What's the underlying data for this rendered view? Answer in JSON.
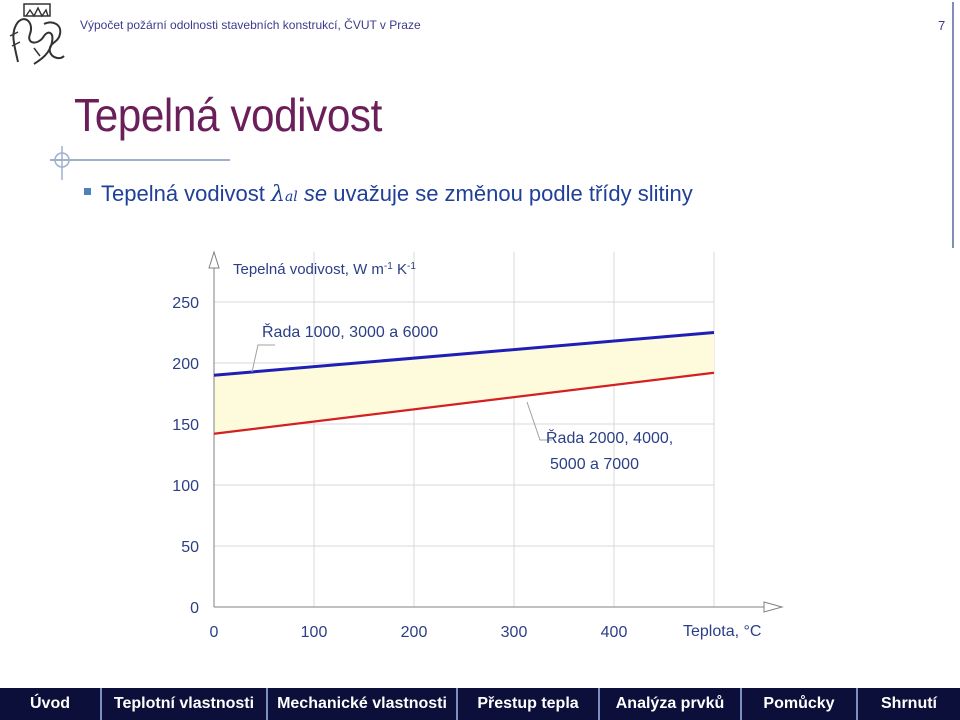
{
  "header": {
    "text": "Výpočet požární odolnosti stavebních konstrukcí, ČVUT v Praze",
    "page_number": "7"
  },
  "slide": {
    "title": "Tepelná vodivost",
    "bullet": {
      "part1": "Tepelná vodivost ",
      "symbol": "λ",
      "subscript": "al",
      "part2": " se",
      "part3": " uvažuje se změnou podle třídy slitiny"
    }
  },
  "chart_data": {
    "type": "line",
    "ylabel": "Tepelná vodivost, W m-1 K-1",
    "xlabel": "Teplota, °C",
    "x_ticks": [
      "0",
      "100",
      "200",
      "300",
      "400"
    ],
    "y_ticks": [
      "0",
      "50",
      "100",
      "150",
      "200",
      "250"
    ],
    "xlim": [
      0,
      500
    ],
    "ylim": [
      0,
      250
    ],
    "grid": true,
    "series": [
      {
        "name": "Řada 1000, 3000 a 6000",
        "color": "#1f1fb5",
        "x": [
          0,
          500
        ],
        "y": [
          190,
          225
        ]
      },
      {
        "name": "Řada 2000, 4000, 5000 a 7000",
        "color": "#d42020",
        "x": [
          0,
          500
        ],
        "y": [
          142,
          192
        ]
      }
    ],
    "fill_between": {
      "color": "#fdfbdc",
      "series": [
        0,
        1
      ]
    },
    "annotations": [
      {
        "lines": [
          "Řada 1000, 3000 a 6000"
        ]
      },
      {
        "lines": [
          "Řada 2000, 4000,",
          "5000 a 7000"
        ]
      }
    ]
  },
  "nav": {
    "items": [
      "Úvod",
      "Teplotní vlastnosti",
      "Mechanické vlastnosti",
      "Přestup tepla",
      "Analýza prvků",
      "Pomůcky",
      "Shrnutí"
    ],
    "background": "#0b0f3a"
  }
}
